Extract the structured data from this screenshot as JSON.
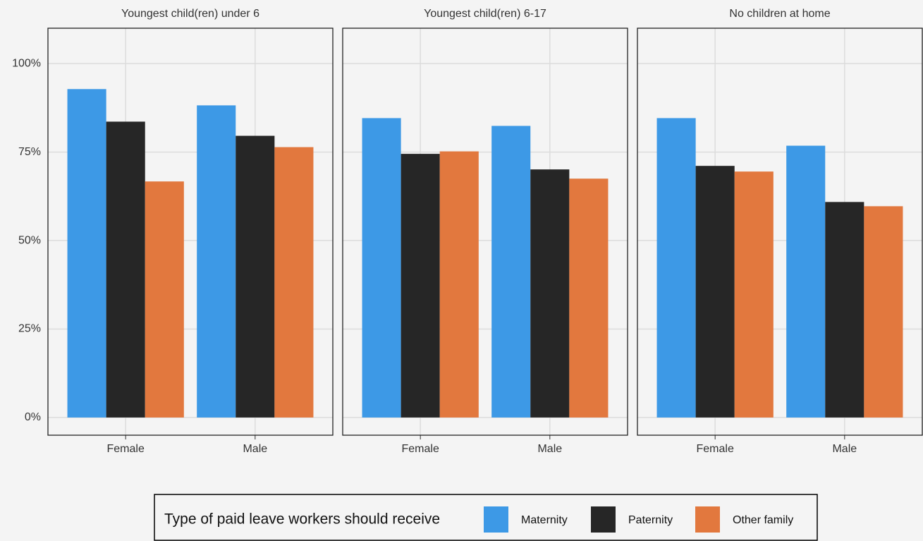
{
  "chart_data": [
    {
      "type": "bar",
      "title": "Youngest child(ren) under 6",
      "categories": [
        "Female",
        "Male"
      ],
      "series": [
        {
          "name": "Maternity",
          "color": "#3d99e6",
          "values": [
            92.8,
            88.2
          ]
        },
        {
          "name": "Paternity",
          "color": "#262626",
          "values": [
            83.6,
            79.6
          ]
        },
        {
          "name": "Other family",
          "color": "#e2783e",
          "values": [
            66.7,
            76.4
          ]
        }
      ],
      "ylim": [
        -5,
        110
      ],
      "yticks": [
        {
          "value": 0,
          "label": "0%"
        },
        {
          "value": 25,
          "label": "25%"
        },
        {
          "value": 50,
          "label": "50%"
        },
        {
          "value": 75,
          "label": "75%"
        },
        {
          "value": 100,
          "label": "100%"
        }
      ],
      "grid": true
    },
    {
      "type": "bar",
      "title": "Youngest child(ren) 6-17",
      "categories": [
        "Female",
        "Male"
      ],
      "series": [
        {
          "name": "Maternity",
          "color": "#3d99e6",
          "values": [
            84.6,
            82.4
          ]
        },
        {
          "name": "Paternity",
          "color": "#262626",
          "values": [
            74.5,
            70.1
          ]
        },
        {
          "name": "Other family",
          "color": "#e2783e",
          "values": [
            75.2,
            67.5
          ]
        }
      ],
      "ylim": [
        -5,
        110
      ],
      "grid": true
    },
    {
      "type": "bar",
      "title": "No children at home",
      "categories": [
        "Female",
        "Male"
      ],
      "series": [
        {
          "name": "Maternity",
          "color": "#3d99e6",
          "values": [
            84.6,
            76.8
          ]
        },
        {
          "name": "Paternity",
          "color": "#262626",
          "values": [
            71.1,
            60.9
          ]
        },
        {
          "name": "Other family",
          "color": "#e2783e",
          "values": [
            69.5,
            59.7
          ]
        }
      ],
      "ylim": [
        -5,
        110
      ],
      "grid": true
    }
  ],
  "legend": {
    "title": "Type of paid leave workers should receive"
  }
}
